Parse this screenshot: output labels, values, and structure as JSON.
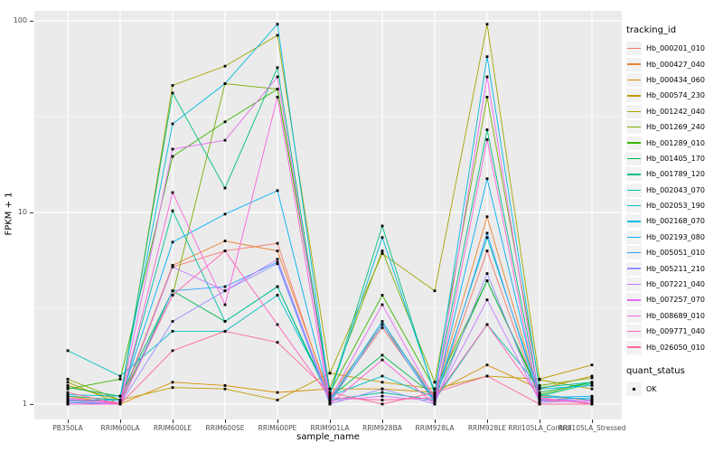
{
  "chart_data": {
    "type": "line",
    "title": "",
    "xlabel": "sample_name",
    "ylabel": "FPKM + 1",
    "y_scale": "log10",
    "y_ticks": [
      "1",
      "10",
      "100"
    ],
    "ylim": [
      1,
      110
    ],
    "grid": true,
    "panel_bg": "#EBEBEB",
    "grid_color": "#FFFFFF",
    "point_marker": "filled-black-square",
    "legend_position": "right",
    "categories": [
      "PB350LA",
      "RRIM600LA",
      "RRIM600LE",
      "RRIM600SE",
      "RRIM600PE",
      "RRIM901LA",
      "RRIM928BA",
      "RRIM928LA",
      "RRIM928LE",
      "RRII105LA_Control",
      "RRII105LA_Stressed"
    ],
    "series": [
      {
        "name": "Hb_000201_010",
        "color": "#F8766D",
        "values": [
          1.02,
          1.0,
          5.2,
          6.3,
          6.9,
          1.05,
          2.5,
          1.05,
          6.3,
          1.05,
          1.02
        ]
      },
      {
        "name": "Hb_000427_040",
        "color": "#EA8331",
        "values": [
          1.05,
          1.02,
          5.3,
          7.1,
          6.3,
          1.1,
          2.6,
          1.1,
          9.5,
          1.1,
          1.05
        ]
      },
      {
        "name": "Hb_000434_060",
        "color": "#D89000",
        "values": [
          1.1,
          1.0,
          1.3,
          1.25,
          1.15,
          1.2,
          1.2,
          1.15,
          1.6,
          1.2,
          1.4
        ]
      },
      {
        "name": "Hb_000574_230",
        "color": "#C09B00",
        "values": [
          1.25,
          1.05,
          1.22,
          1.2,
          1.05,
          1.45,
          1.3,
          1.2,
          1.4,
          1.35,
          1.6
        ]
      },
      {
        "name": "Hb_001242_040",
        "color": "#A3A500",
        "values": [
          1.3,
          1.0,
          46,
          58,
          84,
          1.45,
          6.1,
          3.9,
          96,
          1.34,
          1.2
        ]
      },
      {
        "name": "Hb_001269_240",
        "color": "#7CAE00",
        "values": [
          1.35,
          1.05,
          3.7,
          47,
          44,
          1.2,
          6.3,
          1.3,
          40,
          1.25,
          1.37
        ]
      },
      {
        "name": "Hb_001289_010",
        "color": "#39B600",
        "values": [
          1.2,
          1.35,
          19.6,
          29.7,
          44,
          1.15,
          3.7,
          1.2,
          4.4,
          1.12,
          1.3
        ]
      },
      {
        "name": "Hb_001405_170",
        "color": "#00BB4E",
        "values": [
          1.22,
          1.1,
          3.9,
          2.7,
          4.1,
          1.08,
          1.8,
          1.1,
          4.4,
          1.15,
          1.3
        ]
      },
      {
        "name": "Hb_001789_120",
        "color": "#00BF7D",
        "values": [
          1.1,
          1.05,
          42,
          13.4,
          57,
          1.12,
          8.5,
          1.12,
          27,
          1.1,
          1.28
        ]
      },
      {
        "name": "Hb_002043_070",
        "color": "#00C1A3",
        "values": [
          1.05,
          1.02,
          10.2,
          2.7,
          4.1,
          1.05,
          1.15,
          1.05,
          2.6,
          1.22,
          1.3
        ]
      },
      {
        "name": "Hb_002053_190",
        "color": "#00BFC4",
        "values": [
          1.9,
          1.4,
          2.4,
          2.4,
          3.7,
          1.1,
          1.4,
          1.08,
          7.4,
          1.12,
          1.05
        ]
      },
      {
        "name": "Hb_002168_070",
        "color": "#00BAE0",
        "values": [
          1.12,
          1.1,
          29,
          47,
          96,
          1.12,
          7.4,
          1.15,
          65,
          1.2,
          1.25
        ]
      },
      {
        "name": "Hb_002193_080",
        "color": "#00B0F6",
        "values": [
          1.05,
          1.05,
          7.0,
          9.8,
          13,
          1.05,
          2.7,
          1.05,
          15,
          1.08,
          1.1
        ]
      },
      {
        "name": "Hb_005051_010",
        "color": "#35A2FF",
        "values": [
          1.02,
          1.0,
          3.9,
          4.1,
          5.5,
          1.02,
          2.6,
          1.02,
          7.8,
          1.05,
          1.08
        ]
      },
      {
        "name": "Hb_005211_210",
        "color": "#9590FF",
        "values": [
          1.0,
          1.0,
          2.7,
          3.9,
          5.4,
          1.0,
          1.2,
          1.0,
          4.8,
          1.02,
          1.05
        ]
      },
      {
        "name": "Hb_007221_040",
        "color": "#C77CFF",
        "values": [
          1.04,
          1.0,
          5.2,
          3.9,
          5.7,
          1.04,
          1.1,
          1.04,
          3.5,
          1.04,
          1.02
        ]
      },
      {
        "name": "Hb_007257_070",
        "color": "#E76BF3",
        "values": [
          1.06,
          1.02,
          21.4,
          23.8,
          51,
          1.06,
          3.3,
          1.06,
          51,
          1.06,
          1.04
        ]
      },
      {
        "name": "Hb_008689_010",
        "color": "#FA62DB",
        "values": [
          1.0,
          1.0,
          12.7,
          3.3,
          40,
          1.0,
          1.7,
          1.0,
          24,
          1.0,
          1.0
        ]
      },
      {
        "name": "Hb_009771_040",
        "color": "#FF62BC",
        "values": [
          1.08,
          1.0,
          3.7,
          6.3,
          2.6,
          1.08,
          1.05,
          1.08,
          2.6,
          1.08,
          1.0
        ]
      },
      {
        "name": "Hb_026050_010",
        "color": "#FF6A98",
        "values": [
          1.15,
          1.0,
          1.9,
          2.4,
          2.1,
          1.15,
          1.0,
          1.15,
          1.4,
          1.0,
          1.0
        ]
      }
    ],
    "legend": {
      "color_title": "tracking_id",
      "shape_title": "quant_status",
      "shape_items": [
        {
          "label": "OK",
          "marker": "black-square"
        }
      ]
    }
  }
}
